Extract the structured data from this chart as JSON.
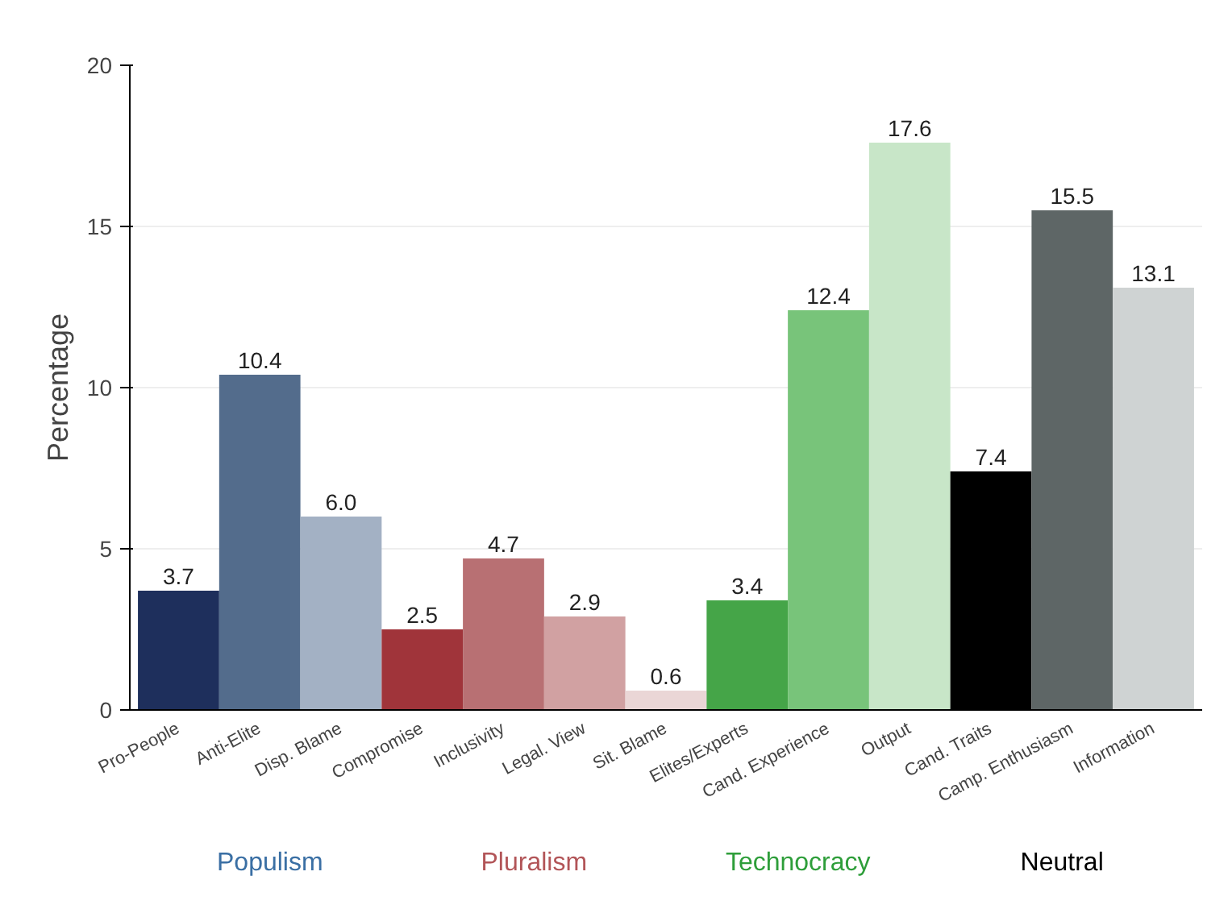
{
  "chart_data": {
    "type": "bar",
    "ylabel": "Percentage",
    "categories": [
      "Pro-People",
      "Anti-Elite",
      "Disp. Blame",
      "Compromise",
      "Inclusivity",
      "Legal. View",
      "Sit. Blame",
      "Elites/Experts",
      "Cand. Experience",
      "Output",
      "Cand. Traits",
      "Camp. Enthusiasm",
      "Information"
    ],
    "values": [
      3.7,
      10.4,
      6.0,
      2.5,
      4.7,
      2.9,
      0.6,
      3.4,
      12.4,
      17.6,
      7.4,
      15.5,
      13.1
    ],
    "colors": [
      "#1e2f5c",
      "#536c8c",
      "#a3b1c4",
      "#a0343a",
      "#b87073",
      "#d1a1a2",
      "#ead6d6",
      "#45a548",
      "#78c47a",
      "#c8e6c8",
      "#000000",
      "#5e6666",
      "#cfd3d3"
    ],
    "value_labels": [
      "3.7",
      "10.4",
      "6.0",
      "2.5",
      "4.7",
      "2.9",
      "0.6",
      "3.4",
      "12.4",
      "17.6",
      "7.4",
      "15.5",
      "13.1"
    ],
    "ylim": [
      0,
      20
    ],
    "yticks": [
      0,
      5,
      10,
      15,
      20
    ],
    "grid": "y",
    "annotations": [
      "Populism",
      "Pluralism",
      "Technocracy",
      "Neutral"
    ]
  }
}
